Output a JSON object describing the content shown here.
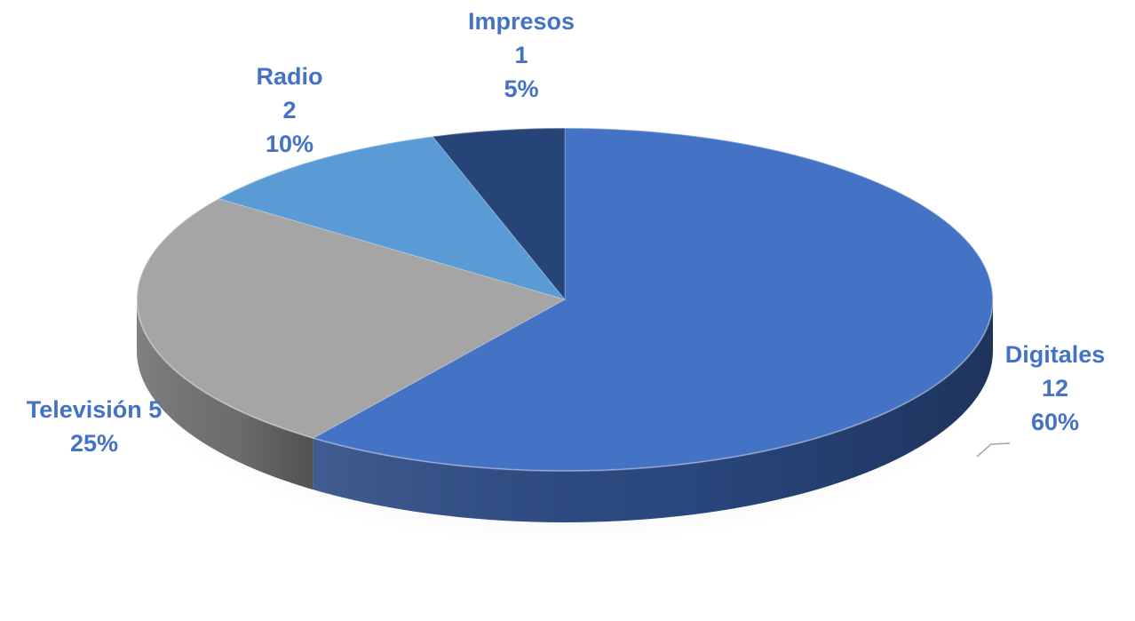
{
  "chart_data": {
    "type": "pie",
    "style": "3d",
    "slices": [
      {
        "name": "Digitales",
        "value": 12,
        "percent": "60%",
        "color": "#4472C4",
        "side_color": "#2B4A84"
      },
      {
        "name": "Televisión",
        "value": 5,
        "percent": "25%",
        "color": "#A5A5A5",
        "side_color": "#737373"
      },
      {
        "name": "Radio",
        "value": 2,
        "percent": "10%",
        "color": "#5B9BD5",
        "side_color": "#3F6F9C"
      },
      {
        "name": "Impresos",
        "value": 1,
        "percent": "5%",
        "color": "#264478",
        "side_color": "#182D52"
      }
    ],
    "labels": [
      {
        "lines": [
          "Digitales",
          "12",
          "60%"
        ]
      },
      {
        "lines": [
          "Televisión 5",
          "25%"
        ]
      },
      {
        "lines": [
          "Radio",
          "2",
          "10%"
        ]
      },
      {
        "lines": [
          "Impresos",
          "1",
          "5%"
        ]
      }
    ],
    "label_color": "#4472C4"
  }
}
